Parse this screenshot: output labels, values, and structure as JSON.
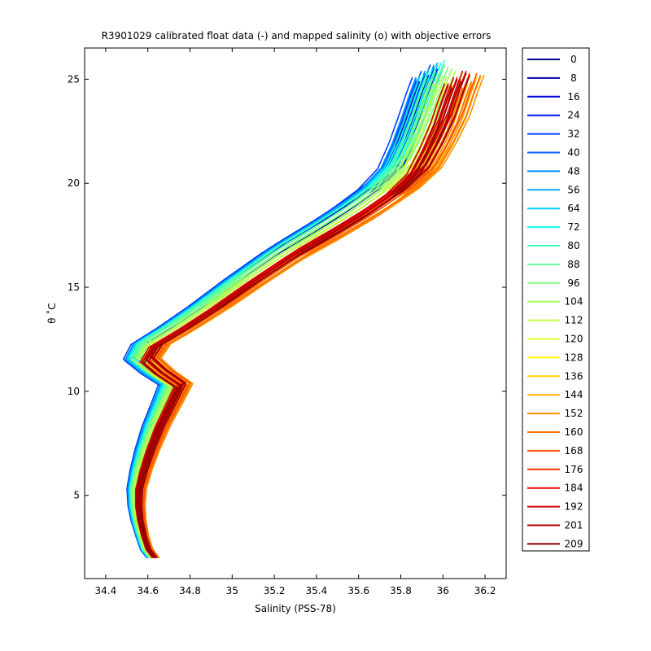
{
  "chart_data": {
    "type": "line",
    "title": "R3901029 calibrated float data (-) and mapped salinity (o) with objective errors",
    "xlabel": "Salinity (PSS-78)",
    "ylabel": "θ ˚C",
    "xlim": [
      34.3,
      36.3
    ],
    "ylim": [
      1.0,
      26.5
    ],
    "xticks": [
      "34.4",
      "34.6",
      "34.8",
      "35",
      "35.2",
      "35.4",
      "35.6",
      "35.8",
      "36",
      "36.2"
    ],
    "yticks": [
      "5",
      "10",
      "15",
      "20",
      "25"
    ],
    "grid": false,
    "legend_position": "right",
    "series": [
      {
        "name": "0",
        "color": "#00008f",
        "s_offset": -0.03,
        "t_offset": 0.0
      },
      {
        "name": "8",
        "color": "#0000af",
        "s_offset": -0.04,
        "t_offset": 0.2
      },
      {
        "name": "16",
        "color": "#0000df",
        "s_offset": -0.05,
        "t_offset": 0.3
      },
      {
        "name": "24",
        "color": "#0010ff",
        "s_offset": -0.05,
        "t_offset": 0.2
      },
      {
        "name": "32",
        "color": "#0040ff",
        "s_offset": -0.06,
        "t_offset": 0.4
      },
      {
        "name": "40",
        "color": "#0060ff",
        "s_offset": -0.05,
        "t_offset": 0.3
      },
      {
        "name": "48",
        "color": "#0090ff",
        "s_offset": -0.05,
        "t_offset": 0.4
      },
      {
        "name": "56",
        "color": "#00b0ff",
        "s_offset": -0.04,
        "t_offset": 0.5
      },
      {
        "name": "64",
        "color": "#00d0ff",
        "s_offset": -0.04,
        "t_offset": 0.4
      },
      {
        "name": "72",
        "color": "#10ffef",
        "s_offset": -0.03,
        "t_offset": 0.5
      },
      {
        "name": "80",
        "color": "#40ffbf",
        "s_offset": -0.02,
        "t_offset": 0.6
      },
      {
        "name": "88",
        "color": "#60ff9f",
        "s_offset": -0.02,
        "t_offset": 0.4
      },
      {
        "name": "96",
        "color": "#80ff80",
        "s_offset": -0.01,
        "t_offset": 0.3
      },
      {
        "name": "104",
        "color": "#a0ff60",
        "s_offset": 0.0,
        "t_offset": 0.2
      },
      {
        "name": "112",
        "color": "#c0ff40",
        "s_offset": 0.01,
        "t_offset": 0.1
      },
      {
        "name": "120",
        "color": "#e0ff20",
        "s_offset": 0.03,
        "t_offset": 0.0
      },
      {
        "name": "128",
        "color": "#ffff00",
        "s_offset": 0.05,
        "t_offset": -0.1
      },
      {
        "name": "136",
        "color": "#ffd000",
        "s_offset": 0.07,
        "t_offset": -0.2
      },
      {
        "name": "144",
        "color": "#ffb000",
        "s_offset": 0.08,
        "t_offset": -0.2
      },
      {
        "name": "152",
        "color": "#ff9000",
        "s_offset": 0.09,
        "t_offset": -0.1
      },
      {
        "name": "160",
        "color": "#ff7000",
        "s_offset": 0.08,
        "t_offset": -0.1
      },
      {
        "name": "168",
        "color": "#ff5000",
        "s_offset": 0.07,
        "t_offset": 0.0
      },
      {
        "name": "176",
        "color": "#ff3000",
        "s_offset": 0.05,
        "t_offset": 0.0
      },
      {
        "name": "184",
        "color": "#ef0000",
        "s_offset": 0.04,
        "t_offset": 0.1
      },
      {
        "name": "192",
        "color": "#cf0000",
        "s_offset": 0.03,
        "t_offset": 0.1
      },
      {
        "name": "201",
        "color": "#af0000",
        "s_offset": 0.04,
        "t_offset": 0.0
      },
      {
        "name": "209",
        "color": "#8f0000",
        "s_offset": 0.05,
        "t_offset": -0.1
      }
    ],
    "base_profile": [
      {
        "s": 34.62,
        "t": 2.0
      },
      {
        "s": 34.59,
        "t": 2.4
      },
      {
        "s": 34.57,
        "t": 3.0
      },
      {
        "s": 34.55,
        "t": 3.8
      },
      {
        "s": 34.54,
        "t": 4.5
      },
      {
        "s": 34.54,
        "t": 5.3
      },
      {
        "s": 34.56,
        "t": 6.2
      },
      {
        "s": 34.59,
        "t": 7.2
      },
      {
        "s": 34.63,
        "t": 8.3
      },
      {
        "s": 34.68,
        "t": 9.4
      },
      {
        "s": 34.72,
        "t": 10.3
      },
      {
        "s": 34.63,
        "t": 10.9
      },
      {
        "s": 34.56,
        "t": 11.5
      },
      {
        "s": 34.6,
        "t": 12.2
      },
      {
        "s": 34.73,
        "t": 13.0
      },
      {
        "s": 34.88,
        "t": 14.0
      },
      {
        "s": 35.06,
        "t": 15.3
      },
      {
        "s": 35.25,
        "t": 16.6
      },
      {
        "s": 35.42,
        "t": 17.6
      },
      {
        "s": 35.58,
        "t": 18.6
      },
      {
        "s": 35.72,
        "t": 19.6
      },
      {
        "s": 35.82,
        "t": 20.6
      },
      {
        "s": 35.88,
        "t": 21.8
      },
      {
        "s": 35.93,
        "t": 23.0
      },
      {
        "s": 35.97,
        "t": 24.2
      },
      {
        "s": 36.0,
        "t": 25.0
      }
    ]
  }
}
